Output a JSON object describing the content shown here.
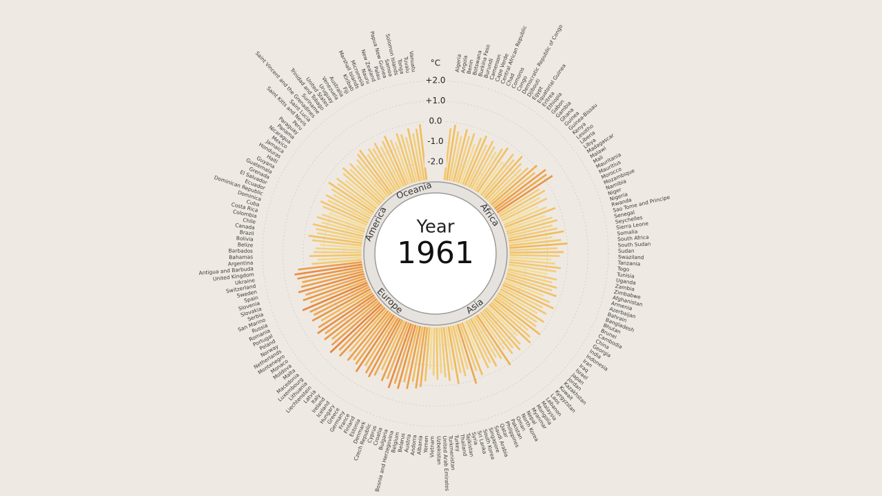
{
  "chart_data": {
    "type": "radial-bar",
    "title": "Year",
    "year": 1961,
    "unit": "°C",
    "rlim": [
      -3,
      2
    ],
    "rticks": [
      {
        "value": 2,
        "label": "+2.0"
      },
      {
        "value": 1,
        "label": "+1.0"
      },
      {
        "value": 0,
        "label": "0.0"
      },
      {
        "value": -1,
        "label": "-1.0"
      },
      {
        "value": -2,
        "label": "-2.0"
      }
    ],
    "grid": true,
    "colors": [
      "#faf3d6",
      "#f8ecbc",
      "#f5e3a0",
      "#f0b955",
      "#e2602a",
      "#c23a18"
    ],
    "regions": [
      {
        "name": "Africa",
        "categories": [
          "Algeria",
          "Angola",
          "Benin",
          "Botswana",
          "Burkina Faso",
          "Burundi",
          "Cameroon",
          "Cape Verde",
          "Central African Republic",
          "Chad",
          "Comoros",
          "Congo",
          "Democratic Republic of Congo",
          "Djibouti",
          "Egypt",
          "Equatorial Guinea",
          "Eritrea",
          "Ethiopia",
          "Gabon",
          "Gambia",
          "Ghana",
          "Guinea",
          "Guinea-Bissau",
          "Kenya",
          "Lesotho",
          "Liberia",
          "Libya",
          "Madagascar",
          "Malawi",
          "Mali",
          "Mauritania",
          "Mauritius",
          "Morocco",
          "Mozambique",
          "Namibia",
          "Niger",
          "Nigeria",
          "Rwanda",
          "Sao Tome and Principe",
          "Senegal",
          "Seychelles",
          "Sierra Leone",
          "Somalia",
          "South Africa",
          "South Sudan",
          "Sudan",
          "Swaziland",
          "Tanzania",
          "Togo",
          "Tunisia",
          "Uganda",
          "Zambia",
          "Zimbabwe"
        ],
        "values": [
          -0.3,
          -0.1,
          -0.4,
          -0.6,
          -0.2,
          -0.5,
          -0.3,
          -0.8,
          -0.4,
          -0.2,
          -0.6,
          -0.3,
          -0.5,
          -0.7,
          -0.4,
          -0.2,
          -0.9,
          -0.3,
          -0.5,
          -0.1,
          -0.4,
          -0.6,
          -0.3,
          0.1,
          -0.2,
          0.3,
          0.2,
          0.4,
          -0.5,
          -0.3,
          -0.7,
          -0.4,
          -1.0,
          -0.6,
          -0.2,
          -0.8,
          -0.5,
          -0.3,
          -0.6,
          -0.4,
          -0.1,
          -0.7,
          -0.3,
          0.0,
          -0.5,
          -0.2,
          -0.4,
          -0.8,
          -0.6,
          -0.3,
          -0.5,
          -0.9,
          -0.4
        ]
      },
      {
        "name": "Asia",
        "categories": [
          "Afghanistan",
          "Armenia",
          "Azerbaijan",
          "Bahrain",
          "Bangladesh",
          "Bhutan",
          "Brunei",
          "Cambodia",
          "China",
          "Georgia",
          "India",
          "Indonesia",
          "Iran",
          "Iraq",
          "Israel",
          "Japan",
          "Jordan",
          "Kazakhstan",
          "Kuwait",
          "Kyrgyzstan",
          "Laos",
          "Lebanon",
          "Malaysia",
          "Mongolia",
          "Myanmar",
          "Nepal",
          "North Korea",
          "Oman",
          "Pakistan",
          "Philippines",
          "Qatar",
          "Saudi Arabia",
          "Singapore",
          "South Korea",
          "Sri Lanka",
          "Syria",
          "Tajikistan",
          "Thailand",
          "Turkey",
          "Turkmenistan",
          "United Arab Emirates",
          "Uzbekistan",
          "Vietnam",
          "Yemen"
        ],
        "values": [
          -0.6,
          -0.3,
          -0.5,
          -0.2,
          -0.8,
          -0.4,
          -0.1,
          -0.6,
          -0.3,
          -0.7,
          -0.2,
          -0.5,
          -0.4,
          0.0,
          -0.6,
          -0.3,
          -0.1,
          -0.8,
          -0.4,
          -0.2,
          -0.5,
          -0.3,
          -0.7,
          0.1,
          -0.4,
          -0.6,
          -0.2,
          -0.5,
          -0.3,
          -0.9,
          -0.1,
          -0.4,
          0.2,
          -0.6,
          -0.3,
          -0.5,
          0.0,
          -0.7,
          -0.2,
          -0.4,
          -0.6,
          -0.3,
          -0.5,
          -0.8
        ]
      },
      {
        "name": "Europe",
        "categories": [
          "Albania",
          "Andorra",
          "Austria",
          "Belarus",
          "Belgium",
          "Bosnia and Herzegovina",
          "Bulgaria",
          "Croatia",
          "Cyprus",
          "Czech Republic",
          "Denmark",
          "Estonia",
          "Finland",
          "France",
          "Germany",
          "Greece",
          "Hungary",
          "Iceland",
          "Ireland",
          "Italy",
          "Latvia",
          "Liechtenstein",
          "Lithuania",
          "Luxembourg",
          "Macedonia",
          "Malta",
          "Moldova",
          "Monaco",
          "Montenegro",
          "Netherlands",
          "Norway",
          "Poland",
          "Portugal",
          "Romania",
          "Russia",
          "San Marino",
          "Serbia",
          "Slovakia",
          "Slovenia",
          "Spain",
          "Sweden",
          "Switzerland",
          "Ukraine",
          "United Kingdom"
        ],
        "values": [
          -0.2,
          0.1,
          0.2,
          -0.1,
          0.3,
          0.0,
          0.4,
          0.2,
          0.5,
          0.1,
          0.3,
          -0.2,
          0.2,
          0.4,
          0.3,
          0.0,
          0.5,
          0.2,
          0.1,
          0.3,
          -0.1,
          0.4,
          0.2,
          0.6,
          0.3,
          0.1,
          0.4,
          0.2,
          0.5,
          0.3,
          0.0,
          0.4,
          0.2,
          0.3,
          0.6,
          0.1,
          0.4,
          0.2,
          0.5,
          0.3,
          0.2,
          0.4,
          0.5,
          0.3
        ]
      },
      {
        "name": "America",
        "categories": [
          "Antigua and Barbuda",
          "Argentina",
          "Bahamas",
          "Barbados",
          "Belize",
          "Bolivia",
          "Brazil",
          "Canada",
          "Chile",
          "Colombia",
          "Costa Rica",
          "Cuba",
          "Dominica",
          "Dominican Republic",
          "Ecuador",
          "El Salvador",
          "Grenada",
          "Guatemala",
          "Guyana",
          "Haiti",
          "Honduras",
          "Jamaica",
          "Mexico",
          "Nicaragua",
          "Panama",
          "Paraguay",
          "Peru",
          "Saint Kitts and Nevis",
          "Saint Lucia",
          "Saint Vincent and the Grenadines",
          "Suriname",
          "Trinidad and Tobago",
          "United States",
          "Uruguay",
          "Venezuela"
        ],
        "values": [
          -0.4,
          -0.7,
          -0.3,
          -0.5,
          -0.6,
          -0.8,
          -0.4,
          -0.2,
          -0.6,
          -0.5,
          -0.3,
          -0.7,
          -0.4,
          -0.6,
          -0.9,
          -0.5,
          -0.3,
          -0.6,
          -0.4,
          -0.7,
          -0.5,
          -0.2,
          -0.6,
          -0.4,
          -0.8,
          -0.5,
          -0.3,
          -0.6,
          -0.4,
          -0.7,
          -0.5,
          -0.3,
          -0.2,
          -0.6,
          -0.4
        ]
      },
      {
        "name": "Oceania",
        "categories": [
          "Australia",
          "Fiji",
          "Kiribati",
          "Marshall Islands",
          "Micronesia",
          "Nauru",
          "New Zealand",
          "Palau",
          "Papua New Guinea",
          "Samoa",
          "Solomon Islands",
          "Tonga",
          "Tuvalu",
          "Vanuatu"
        ],
        "values": [
          -0.5,
          -0.3,
          -0.6,
          -0.4,
          -0.2,
          -0.5,
          -0.7,
          -0.3,
          -0.4,
          -0.6,
          -0.2,
          -0.5,
          -0.3,
          -0.1
        ]
      }
    ]
  }
}
